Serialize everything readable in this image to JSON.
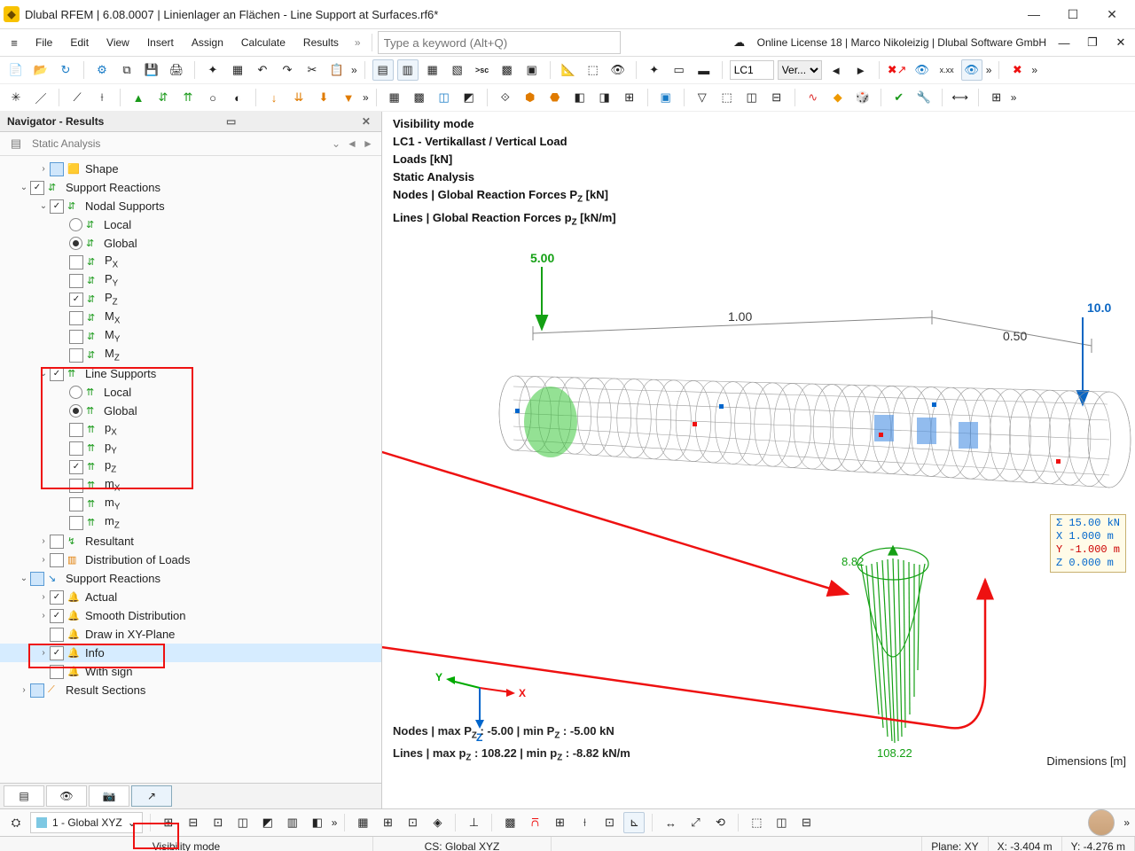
{
  "window": {
    "title": "Dlubal RFEM | 6.08.0007 | Linienlager an Flächen - Line Support at Surfaces.rf6*"
  },
  "menubar": {
    "items": [
      "File",
      "Edit",
      "View",
      "Insert",
      "Assign",
      "Calculate",
      "Results"
    ],
    "search_placeholder": "Type a keyword (Alt+Q)",
    "license": "Online License 18 | Marco Nikoleizig | Dlubal Software GmbH"
  },
  "toolbar_lc": {
    "code": "LC1",
    "desc": "Ver..."
  },
  "navigator": {
    "title": "Navigator - Results",
    "analysis": "Static Analysis",
    "tree": [
      {
        "d": 1,
        "exp": ">",
        "chk": "blue",
        "icon": "🟨",
        "iclass": "",
        "label": "Shape"
      },
      {
        "d": 0,
        "exp": "v",
        "chk": "on",
        "icon": "⇵",
        "iclass": "ic-green",
        "label": "Support Reactions"
      },
      {
        "d": 1,
        "exp": "v",
        "chk": "on",
        "icon": "⇵",
        "iclass": "ic-green",
        "label": "Nodal Supports"
      },
      {
        "d": 2,
        "exp": "",
        "radio": "off",
        "icon": "⇵",
        "iclass": "ic-green",
        "label": "Local"
      },
      {
        "d": 2,
        "exp": "",
        "radio": "on",
        "icon": "⇵",
        "iclass": "ic-green",
        "label": "Global"
      },
      {
        "d": 2,
        "exp": "",
        "chk": "off",
        "icon": "⇵",
        "iclass": "ic-green",
        "label": "P<sub>X</sub>"
      },
      {
        "d": 2,
        "exp": "",
        "chk": "off",
        "icon": "⇵",
        "iclass": "ic-green",
        "label": "P<sub>Y</sub>"
      },
      {
        "d": 2,
        "exp": "",
        "chk": "on",
        "icon": "⇵",
        "iclass": "ic-green",
        "label": "P<sub>Z</sub>"
      },
      {
        "d": 2,
        "exp": "",
        "chk": "off",
        "icon": "⇵",
        "iclass": "ic-green",
        "label": "M<sub>X</sub>"
      },
      {
        "d": 2,
        "exp": "",
        "chk": "off",
        "icon": "⇵",
        "iclass": "ic-green",
        "label": "M<sub>Y</sub>"
      },
      {
        "d": 2,
        "exp": "",
        "chk": "off",
        "icon": "⇵",
        "iclass": "ic-green",
        "label": "M<sub>Z</sub>"
      },
      {
        "d": 1,
        "exp": "v",
        "chk": "on",
        "icon": "⇈",
        "iclass": "ic-green",
        "label": "Line Supports"
      },
      {
        "d": 2,
        "exp": "",
        "radio": "off",
        "icon": "⇈",
        "iclass": "ic-green",
        "label": "Local"
      },
      {
        "d": 2,
        "exp": "",
        "radio": "on",
        "icon": "⇈",
        "iclass": "ic-green",
        "label": "Global"
      },
      {
        "d": 2,
        "exp": "",
        "chk": "off",
        "icon": "⇈",
        "iclass": "ic-green",
        "label": "p<sub>X</sub>"
      },
      {
        "d": 2,
        "exp": "",
        "chk": "off",
        "icon": "⇈",
        "iclass": "ic-green",
        "label": "p<sub>Y</sub>"
      },
      {
        "d": 2,
        "exp": "",
        "chk": "on",
        "icon": "⇈",
        "iclass": "ic-green",
        "label": "p<sub>Z</sub>"
      },
      {
        "d": 2,
        "exp": "",
        "chk": "off",
        "icon": "⇈",
        "iclass": "ic-green",
        "label": "m<sub>X</sub>"
      },
      {
        "d": 2,
        "exp": "",
        "chk": "off",
        "icon": "⇈",
        "iclass": "ic-green",
        "label": "m<sub>Y</sub>"
      },
      {
        "d": 2,
        "exp": "",
        "chk": "off",
        "icon": "⇈",
        "iclass": "ic-green",
        "label": "m<sub>Z</sub>"
      },
      {
        "d": 1,
        "exp": ">",
        "chk": "off",
        "icon": "↯",
        "iclass": "ic-green",
        "label": "Resultant"
      },
      {
        "d": 1,
        "exp": ">",
        "chk": "off",
        "icon": "▥",
        "iclass": "ic-orange",
        "label": "Distribution of Loads"
      },
      {
        "d": 0,
        "exp": "v",
        "chk": "blue",
        "icon": "↘",
        "iclass": "ic-blue",
        "label": "Support Reactions"
      },
      {
        "d": 1,
        "exp": ">",
        "chk": "on",
        "icon": "🔔",
        "iclass": "ic-gray",
        "label": "Actual"
      },
      {
        "d": 1,
        "exp": ">",
        "chk": "on",
        "icon": "🔔",
        "iclass": "ic-gray",
        "label": "Smooth Distribution"
      },
      {
        "d": 1,
        "exp": "",
        "chk": "off",
        "icon": "🔔",
        "iclass": "ic-gray",
        "label": "Draw in XY-Plane"
      },
      {
        "d": 1,
        "exp": ">",
        "chk": "on",
        "icon": "🔔",
        "iclass": "ic-gray",
        "label": "Info",
        "selected": true
      },
      {
        "d": 1,
        "exp": "",
        "chk": "off",
        "icon": "🔔",
        "iclass": "ic-gray",
        "label": "With sign"
      },
      {
        "d": 0,
        "exp": ">",
        "chk": "blue",
        "icon": "⟋",
        "iclass": "ic-orange",
        "label": "Result Sections"
      }
    ]
  },
  "viewport": {
    "hud": [
      "Visibility mode",
      "LC1 - Vertikallast / Vertical Load",
      "Loads [kN]",
      "Static Analysis",
      "Nodes | Global Reaction Forces P<sub>Z</sub> [kN]",
      "Lines | Global Reaction Forces p<sub>Z</sub> [kN/m]"
    ],
    "load_top": "5.00",
    "load_right": "10.0",
    "dim_a": "1.00",
    "dim_b": "0.50",
    "react_left": "8.82",
    "react_bottom": "108.22",
    "readout": {
      "sigma": "Σ  15.00  kN",
      "x": "X   1.000  m",
      "y": "Y  -1.000  m",
      "z": "Z   0.000  m"
    },
    "foot1": "Nodes | max P<sub>Z</sub> : -5.00 | min P<sub>Z</sub> : -5.00 kN",
    "foot2": "Lines | max p<sub>Z</sub> : 108.22 | min p<sub>Z</sub> : -8.82 kN/m",
    "dim_label": "Dimensions [m]",
    "axes": {
      "x": "X",
      "y": "Y",
      "z": "Z",
      "x_color": "#e11",
      "y_color": "#0a0",
      "z_color": "#06c"
    }
  },
  "bottom_toolbar": {
    "global": "1 - Global XYZ"
  },
  "statusbar": {
    "mode": "Visibility mode",
    "cs": "CS: Global XYZ",
    "plane": "Plane: XY",
    "x": "X: -3.404 m",
    "y": "Y: -4.276 m"
  },
  "colors": {
    "accent_green": "#14a014",
    "accent_blue": "#0b66c3",
    "highlight_red": "#e11212",
    "mesh_gray": "#9a9a9a"
  }
}
